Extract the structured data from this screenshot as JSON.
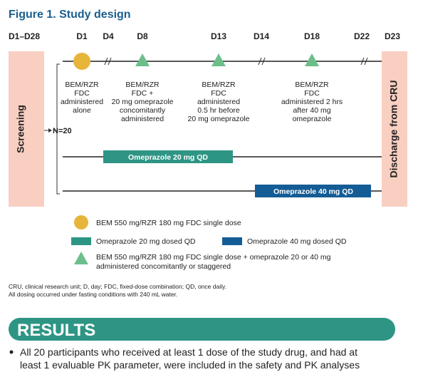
{
  "title": "Figure 1. Study design",
  "days": [
    "D1–D28",
    "D1",
    "D4",
    "D8",
    "D13",
    "D14",
    "D18",
    "D22",
    "D23"
  ],
  "screening": "Screening",
  "discharge": "Discharge from CRU",
  "n": "N=20",
  "dosing_notes": [
    [
      "BEM/RZR",
      "FDC",
      "administered",
      "alone"
    ],
    [
      "BEM/RZR",
      "FDC +",
      "20 mg omeprazole",
      "concomitantly",
      "administered"
    ],
    [
      "BEM/RZR",
      "FDC",
      "administered",
      "0.5 hr before",
      "20 mg omeprazole"
    ],
    [
      "BEM/RZR",
      "FDC",
      "administered 2 hrs",
      "after 40 mg",
      "omeprazole"
    ]
  ],
  "bars": [
    "Omeprazole 20 mg QD",
    "Omeprazole 40 mg QD"
  ],
  "legend": {
    "circle": "BEM 550 mg/RZR 180 mg FDC single dose",
    "teal": "Omeprazole 20 mg dosed QD",
    "blue": "Omeprazole 40 mg dosed QD",
    "triangle": [
      "BEM 550 mg/RZR 180 mg FDC single dose + omeprazole 20 or 40 mg",
      "administered concomitantly or staggered"
    ]
  },
  "footnotes": [
    "CRU, clinical research unit; D, day; FDC, fixed-dose combination; QD, once daily.",
    "All dosing occurred under fasting conditions with 240 mL water."
  ],
  "results": {
    "heading": "RESULTS",
    "bullet": [
      "All 20 participants who received at least 1 dose of the study drug, and had at",
      "least 1 evaluable PK parameter, were included in the safety and PK analyses"
    ]
  }
}
